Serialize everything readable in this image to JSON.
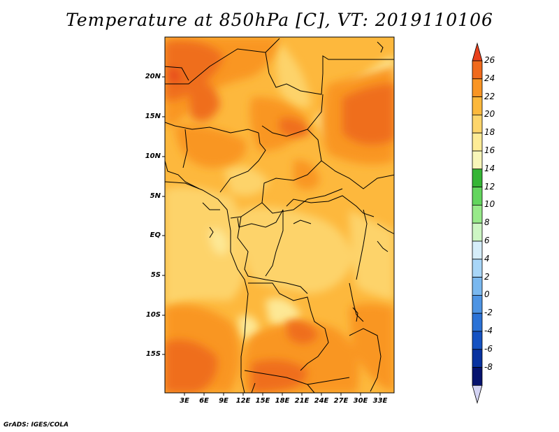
{
  "title": "Temperature at 850hPa [C], VT: 2019110106",
  "footer": "GrADS: IGES/COLA",
  "map": {
    "lat_range": [
      -19.5,
      24.5
    ],
    "lon_range": [
      0,
      35
    ],
    "lat_ticks": [
      "20N",
      "15N",
      "10N",
      "5N",
      "EQ",
      "5S",
      "10S",
      "15S"
    ],
    "lon_ticks": [
      "3E",
      "6E",
      "9E",
      "12E",
      "15E",
      "18E",
      "21E",
      "24E",
      "27E",
      "30E",
      "33E"
    ],
    "fill_levels_colors": {
      "14-16": "#fde895",
      "16-18": "#fdd36a",
      "18-20": "#fdb83d",
      "20-22": "#f99624",
      "22-24": "#ef6e1b",
      "24-26": "#e84a1b"
    }
  },
  "colorbar": {
    "labels": [
      "26",
      "24",
      "22",
      "20",
      "18",
      "16",
      "14",
      "12",
      "10",
      "8",
      "6",
      "4",
      "2",
      "0",
      "-2",
      "-4",
      "-6",
      "-8"
    ],
    "colors": [
      "#e8401c",
      "#f06a1c",
      "#f99524",
      "#fcb83c",
      "#fdd56b",
      "#fdeb96",
      "#f8f6b9",
      "#35b535",
      "#63d55e",
      "#98ea8a",
      "#cdf6c4",
      "#d5edf9",
      "#a8d6f8",
      "#7ab8ef",
      "#4e94e3",
      "#2b72d6",
      "#1552c2",
      "#0832a0",
      "#06136e",
      "#d4d4f4"
    ]
  }
}
